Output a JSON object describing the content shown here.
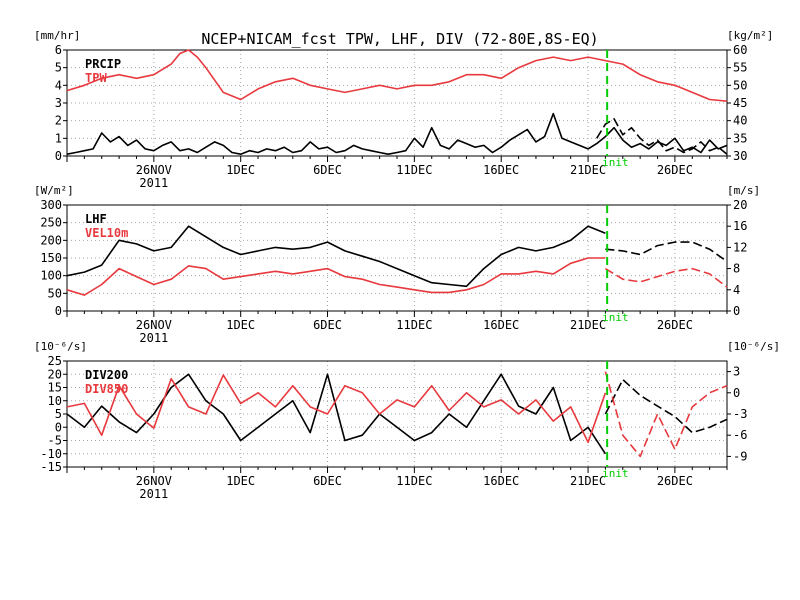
{
  "title": "NCEP+NICAM_fcst TPW, LHF, DIV (72-80E,8S-EQ)",
  "init_label": "init",
  "colors": {
    "black": "#000000",
    "red": "#e8393e",
    "green": "#00cc00",
    "grid": "#a8a8a8"
  },
  "chart_data": [
    {
      "type": "line",
      "legend": [
        "PRCIP",
        "TPW"
      ],
      "left_unit": "[mm/hr]",
      "right_unit": "[kg/m²]",
      "left_ticks": [
        "0",
        "1",
        "2",
        "3",
        "4",
        "5",
        "6"
      ],
      "right_ticks": [
        "30",
        "35",
        "40",
        "45",
        "50",
        "55",
        "60"
      ],
      "ylim_left": [
        0,
        6
      ],
      "ylim_right": [
        30,
        60
      ],
      "x_ticks": [
        "26NOV",
        "1DEC",
        "6DEC",
        "11DEC",
        "16DEC",
        "21DEC",
        "26DEC"
      ],
      "x_year": "2011",
      "series": [
        {
          "name": "PRCIP",
          "axis": "left",
          "x": [
            0,
            0.5,
            1,
            1.5,
            2,
            2.5,
            3,
            3.5,
            4,
            4.5,
            5,
            5.5,
            6,
            6.5,
            7,
            7.5,
            8,
            8.5,
            9,
            9.5,
            10,
            10.5,
            11,
            11.5,
            12,
            12.5,
            13,
            13.5,
            14,
            14.5,
            15,
            15.5,
            16,
            16.5,
            17,
            17.5,
            18,
            18.5,
            19,
            19.5,
            20,
            20.5,
            21,
            21.5,
            22,
            22.5,
            23,
            23.5,
            24,
            24.5,
            25,
            25.5,
            26,
            26.5,
            27,
            27.5,
            28,
            28.5,
            29,
            29.5,
            30,
            30.5,
            31,
            31.5,
            32,
            32.5,
            33,
            33.5,
            34,
            34.5,
            35,
            35.5,
            36,
            36.5,
            37,
            37.5,
            38
          ],
          "y": [
            0.1,
            0.2,
            0.3,
            0.4,
            1.3,
            0.8,
            1.1,
            0.6,
            0.9,
            0.4,
            0.3,
            0.6,
            0.8,
            0.3,
            0.4,
            0.2,
            0.5,
            0.8,
            0.6,
            0.2,
            0.1,
            0.3,
            0.2,
            0.4,
            0.3,
            0.5,
            0.2,
            0.3,
            0.8,
            0.4,
            0.5,
            0.2,
            0.3,
            0.6,
            0.4,
            0.3,
            0.2,
            0.1,
            0.2,
            0.3,
            1.0,
            0.5,
            1.6,
            0.6,
            0.4,
            0.9,
            0.7,
            0.5,
            0.6,
            0.2,
            0.5,
            0.9,
            1.2,
            1.5,
            0.8,
            1.1,
            2.4,
            1.0,
            0.8,
            0.6,
            0.4,
            0.7,
            1.1,
            1.6,
            0.9,
            0.5,
            0.7,
            0.4,
            0.8,
            0.6,
            1.0,
            0.3,
            0.5,
            0.2,
            0.9,
            0.4,
            0.6
          ]
        },
        {
          "name": "PRCIP",
          "axis": "left",
          "dash": true,
          "x": [
            30.5,
            31,
            31.5,
            32,
            32.5,
            33,
            33.5,
            34,
            34.5,
            35,
            35.5,
            36,
            36.5,
            37,
            37.5,
            38
          ],
          "y": [
            1.0,
            1.8,
            2.1,
            1.2,
            1.6,
            1.0,
            0.6,
            0.9,
            0.3,
            0.5,
            0.2,
            0.4,
            0.8,
            0.3,
            0.5,
            0.1
          ]
        },
        {
          "name": "TPW",
          "axis": "right",
          "x": [
            0,
            1,
            2,
            3,
            4,
            5,
            6,
            6.5,
            7,
            7.5,
            8,
            9,
            10,
            11,
            12,
            13,
            14,
            15,
            16,
            17,
            18,
            19,
            20,
            21,
            22,
            23,
            24,
            25,
            26,
            27,
            28,
            29,
            30,
            31,
            32,
            33,
            34,
            35,
            36,
            37,
            38
          ],
          "y": [
            48.5,
            50,
            52,
            53,
            52,
            53,
            56,
            59,
            60,
            58,
            55,
            48,
            46,
            49,
            51,
            52,
            50,
            49,
            48,
            49,
            50,
            49,
            50,
            50,
            51,
            53,
            53,
            52,
            55,
            57,
            58,
            57,
            58,
            57,
            56,
            53,
            51,
            50,
            48,
            46,
            45.5
          ]
        }
      ]
    },
    {
      "type": "line",
      "legend": [
        "LHF",
        "VEL10m"
      ],
      "left_unit": "[W/m²]",
      "right_unit": "[m/s]",
      "left_ticks": [
        "0",
        "50",
        "100",
        "150",
        "200",
        "250",
        "300"
      ],
      "right_ticks": [
        "0",
        "4",
        "8",
        "12",
        "16",
        "20"
      ],
      "ylim_left": [
        0,
        300
      ],
      "ylim_right": [
        0,
        20
      ],
      "x_ticks": [
        "26NOV",
        "1DEC",
        "6DEC",
        "11DEC",
        "16DEC",
        "21DEC",
        "26DEC"
      ],
      "x_year": "2011",
      "series": [
        {
          "name": "LHF",
          "axis": "left",
          "x": [
            0,
            1,
            2,
            3,
            4,
            5,
            6,
            7,
            8,
            9,
            10,
            11,
            12,
            13,
            14,
            15,
            16,
            17,
            18,
            19,
            20,
            21,
            22,
            23,
            24,
            25,
            26,
            27,
            28,
            29,
            30,
            31
          ],
          "y": [
            100,
            110,
            130,
            200,
            190,
            170,
            180,
            240,
            210,
            180,
            160,
            170,
            180,
            175,
            180,
            195,
            170,
            155,
            140,
            120,
            100,
            80,
            75,
            70,
            120,
            160,
            180,
            170,
            180,
            200,
            240,
            220
          ]
        },
        {
          "name": "LHF",
          "axis": "left",
          "dash": true,
          "x": [
            31,
            32,
            33,
            34,
            35,
            36,
            37,
            38
          ],
          "y": [
            175,
            170,
            160,
            185,
            195,
            195,
            175,
            140
          ]
        },
        {
          "name": "VEL10m",
          "axis": "right",
          "x": [
            0,
            1,
            2,
            3,
            4,
            5,
            6,
            7,
            8,
            9,
            10,
            11,
            12,
            13,
            14,
            15,
            16,
            17,
            18,
            19,
            20,
            21,
            22,
            23,
            24,
            25,
            26,
            27,
            28,
            29,
            30,
            31
          ],
          "y": [
            4,
            3,
            5,
            8,
            6.5,
            5,
            6,
            8.5,
            8,
            6,
            6.5,
            7,
            7.5,
            7,
            7.5,
            8,
            6.5,
            6,
            5,
            4.5,
            4,
            3.5,
            3.5,
            4,
            5,
            7,
            7,
            7.5,
            7,
            9,
            10,
            10
          ]
        },
        {
          "name": "VEL10m",
          "axis": "right",
          "dash": true,
          "x": [
            31,
            32,
            33,
            34,
            35,
            36,
            37,
            38
          ],
          "y": [
            8,
            6,
            5.5,
            6.5,
            7.5,
            8,
            7,
            4.5
          ]
        }
      ]
    },
    {
      "type": "line",
      "legend": [
        "DIV200",
        "DIV850"
      ],
      "left_unit": "[10⁻⁶/s]",
      "right_unit": "[10⁻⁶/s]",
      "left_ticks": [
        "-15",
        "-10",
        "-5",
        "0",
        "5",
        "10",
        "15",
        "20",
        "25"
      ],
      "right_ticks": [
        "-9",
        "-6",
        "-3",
        "0",
        "3"
      ],
      "ylim_left": [
        -15,
        25
      ],
      "ylim_right": [
        -10.5,
        4.5
      ],
      "x_ticks": [
        "26NOV",
        "1DEC",
        "6DEC",
        "11DEC",
        "16DEC",
        "21DEC",
        "26DEC"
      ],
      "x_year": "2011",
      "series": [
        {
          "name": "DIV200",
          "axis": "left",
          "x": [
            0,
            1,
            2,
            3,
            4,
            5,
            6,
            7,
            8,
            9,
            10,
            11,
            12,
            13,
            14,
            15,
            16,
            17,
            18,
            19,
            20,
            21,
            22,
            23,
            24,
            25,
            26,
            27,
            28,
            29,
            30,
            31
          ],
          "y": [
            5,
            0,
            8,
            2,
            -2,
            5,
            15,
            20,
            10,
            5,
            -5,
            0,
            5,
            10,
            -2,
            20,
            -5,
            -3,
            5,
            0,
            -5,
            -2,
            5,
            0,
            10,
            20,
            8,
            5,
            15,
            -5,
            0,
            -10
          ]
        },
        {
          "name": "DIV200",
          "axis": "left",
          "dash": true,
          "x": [
            31,
            32,
            33,
            34,
            35,
            36,
            37,
            38
          ],
          "y": [
            5,
            18,
            12,
            8,
            4,
            -2,
            0,
            3
          ]
        },
        {
          "name": "DIV850",
          "axis": "right",
          "x": [
            0,
            1,
            2,
            3,
            4,
            5,
            6,
            7,
            8,
            9,
            10,
            11,
            12,
            13,
            14,
            15,
            16,
            17,
            18,
            19,
            20,
            21,
            22,
            23,
            24,
            25,
            26,
            27,
            28,
            29,
            30,
            31
          ],
          "y": [
            -2,
            -1.5,
            -6,
            1,
            -3,
            -5,
            2,
            -2,
            -3,
            2.5,
            -1.5,
            0,
            -2,
            1,
            -2,
            -3,
            1,
            0,
            -3,
            -1,
            -2,
            1,
            -2.5,
            0,
            -2,
            -1,
            -3,
            -1,
            -4,
            -2,
            -7,
            0
          ]
        },
        {
          "name": "DIV850",
          "axis": "right",
          "dash": true,
          "x": [
            31,
            32,
            33,
            34,
            35,
            36,
            37,
            38
          ],
          "y": [
            3,
            -6,
            -9,
            -3,
            -8,
            -2,
            0,
            1
          ]
        }
      ]
    }
  ]
}
